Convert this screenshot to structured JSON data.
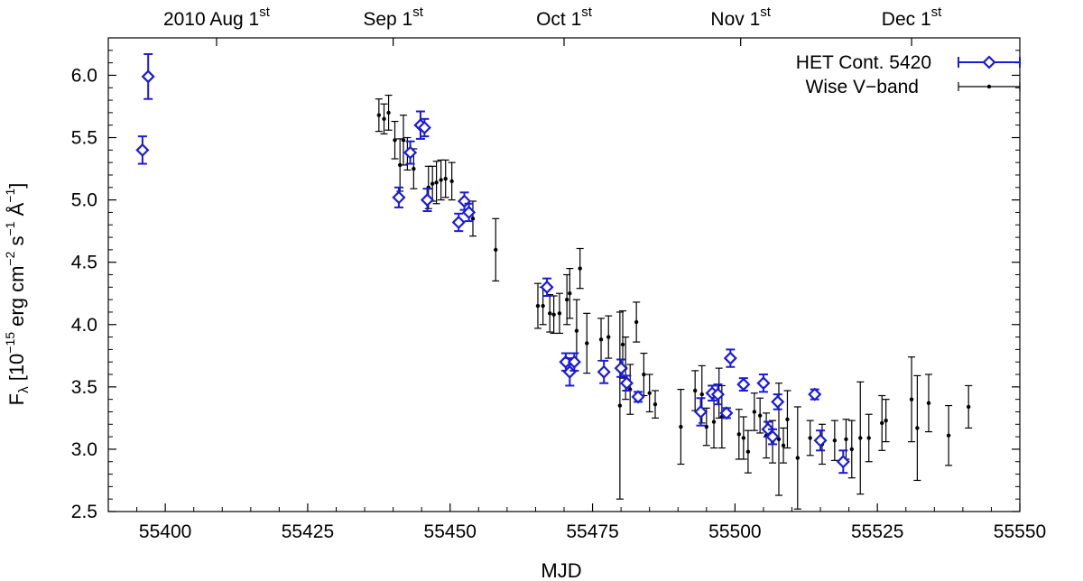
{
  "chart_data": {
    "type": "scatter",
    "title": "",
    "xlabel": "MJD",
    "ylabel": "F_λ [10^-15 erg cm^-2 s^-1 Å^-1]",
    "ylabel_parts": {
      "F": "F",
      "lambda": "λ",
      "open": " [10",
      "exp1": "−15",
      "erg": " erg cm",
      "exp2": "−2",
      "s": " s",
      "exp3": "−1",
      "ang": " Å",
      "exp4": "−1",
      "close": "]"
    },
    "xlim": [
      55390,
      55550
    ],
    "ylim": [
      2.5,
      6.3
    ],
    "xticks": [
      55400,
      55425,
      55450,
      55475,
      55500,
      55525,
      55550
    ],
    "yticks": [
      2.5,
      3.0,
      3.5,
      4.0,
      4.5,
      5.0,
      5.5,
      6.0
    ],
    "xtick_labels": [
      "55400",
      "55425",
      "55450",
      "55475",
      "55500",
      "55525",
      "55550"
    ],
    "ytick_labels": [
      "2.5",
      "3.0",
      "3.5",
      "4.0",
      "4.5",
      "5.0",
      "5.5",
      "6.0"
    ],
    "top_axis": [
      {
        "x": 55409,
        "text": "2010 Aug 1",
        "sup": "st"
      },
      {
        "x": 55440,
        "text": "Sep 1",
        "sup": "st"
      },
      {
        "x": 55470,
        "text": "Oct 1",
        "sup": "st"
      },
      {
        "x": 55501,
        "text": "Nov 1",
        "sup": "st"
      },
      {
        "x": 55531,
        "text": "Dec 1",
        "sup": "st"
      }
    ],
    "top_ticks": [
      55409,
      55440,
      55470,
      55501,
      55531
    ],
    "grid": false,
    "legend_position": "top-right",
    "series": [
      {
        "name": "HET Cont. 5420",
        "color": "#1a1adb",
        "marker": "diamond",
        "points": [
          [
            55396,
            5.4,
            0.11
          ],
          [
            55397,
            5.99,
            0.18
          ],
          [
            55441,
            5.02,
            0.08
          ],
          [
            55443,
            5.38,
            0.09
          ],
          [
            55444.8,
            5.6,
            0.11
          ],
          [
            55445.5,
            5.58,
            0.07
          ],
          [
            55446,
            5.0,
            0.09
          ],
          [
            55451.5,
            4.82,
            0.07
          ],
          [
            55452.5,
            4.99,
            0.07
          ],
          [
            55453.3,
            4.9,
            0.07
          ],
          [
            55467,
            4.3,
            0.07
          ],
          [
            55470.3,
            3.7,
            0.07
          ],
          [
            55471,
            3.62,
            0.11
          ],
          [
            55471.8,
            3.7,
            0.07
          ],
          [
            55477,
            3.62,
            0.09
          ],
          [
            55480,
            3.65,
            0.07
          ],
          [
            55481,
            3.53,
            0.06
          ],
          [
            55483,
            3.42,
            0.04
          ],
          [
            55494,
            3.3,
            0.11
          ],
          [
            55496,
            3.45,
            0.06
          ],
          [
            55497,
            3.44,
            0.08
          ],
          [
            55498.5,
            3.29,
            0.04
          ],
          [
            55499.2,
            3.73,
            0.07
          ],
          [
            55501.5,
            3.52,
            0.05
          ],
          [
            55505,
            3.53,
            0.07
          ],
          [
            55505.8,
            3.16,
            0.06
          ],
          [
            55506.6,
            3.1,
            0.06
          ],
          [
            55507.5,
            3.38,
            0.06
          ],
          [
            55514,
            3.44,
            0.04
          ],
          [
            55515,
            3.07,
            0.08
          ],
          [
            55519,
            2.9,
            0.09
          ]
        ]
      },
      {
        "name": "Wise V−band",
        "color": "#000000",
        "marker": "dot",
        "points": [
          [
            55437.5,
            5.68,
            0.13
          ],
          [
            55438.4,
            5.65,
            0.12
          ],
          [
            55439.2,
            5.7,
            0.14
          ],
          [
            55440.3,
            5.48,
            0.15
          ],
          [
            55441.2,
            5.28,
            0.21
          ],
          [
            55441.8,
            5.48,
            0.2
          ],
          [
            55442.5,
            5.37,
            0.13
          ],
          [
            55443.6,
            5.25,
            0.16
          ],
          [
            55446.2,
            5.1,
            0.17
          ],
          [
            55446.9,
            5.13,
            0.14
          ],
          [
            55447.6,
            5.14,
            0.17
          ],
          [
            55448.4,
            5.16,
            0.16
          ],
          [
            55449.2,
            5.17,
            0.15
          ],
          [
            55450.3,
            5.15,
            0.15
          ],
          [
            55454,
            4.85,
            0.14
          ],
          [
            55458,
            4.6,
            0.25
          ],
          [
            55465.4,
            4.15,
            0.18
          ],
          [
            55466.3,
            4.15,
            0.15
          ],
          [
            55467.5,
            4.09,
            0.15
          ],
          [
            55468.2,
            4.08,
            0.15
          ],
          [
            55469.2,
            4.09,
            0.16
          ],
          [
            55470.5,
            4.2,
            0.2
          ],
          [
            55471,
            4.25,
            0.2
          ],
          [
            55472.2,
            3.95,
            0.25
          ],
          [
            55472.8,
            4.45,
            0.16
          ],
          [
            55474,
            3.85,
            0.24
          ],
          [
            55476.5,
            3.88,
            0.17
          ],
          [
            55477.8,
            3.9,
            0.17
          ],
          [
            55479.8,
            3.35,
            0.75
          ],
          [
            55480.3,
            3.84,
            0.27
          ],
          [
            55480.8,
            3.65,
            0.25
          ],
          [
            55481.6,
            3.48,
            0.2
          ],
          [
            55482.7,
            4.02,
            0.16
          ],
          [
            55484,
            3.6,
            0.17
          ],
          [
            55485,
            3.45,
            0.15
          ],
          [
            55486,
            3.36,
            0.11
          ],
          [
            55490.5,
            3.18,
            0.3
          ],
          [
            55493,
            3.47,
            0.16
          ],
          [
            55494.2,
            3.44,
            0.23
          ],
          [
            55495,
            3.18,
            0.15
          ],
          [
            55496.3,
            3.22,
            0.21
          ],
          [
            55497.2,
            3.45,
            0.2
          ],
          [
            55497.7,
            3.26,
            0.25
          ],
          [
            55500.7,
            3.12,
            0.2
          ],
          [
            55501.5,
            3.09,
            0.17
          ],
          [
            55502.3,
            2.98,
            0.17
          ],
          [
            55503.4,
            3.3,
            0.15
          ],
          [
            55504.4,
            3.27,
            0.14
          ],
          [
            55505.5,
            3.11,
            0.18
          ],
          [
            55506.6,
            3.06,
            0.17
          ],
          [
            55507.7,
            3.08,
            0.45
          ],
          [
            55508.5,
            3.03,
            0.14
          ],
          [
            55509.2,
            3.24,
            0.23
          ],
          [
            55511,
            2.93,
            0.41
          ],
          [
            55513.2,
            3.09,
            0.14
          ],
          [
            55515.3,
            3.04,
            0.16
          ],
          [
            55517.5,
            3.07,
            0.16
          ],
          [
            55519.5,
            3.08,
            0.16
          ],
          [
            55520.5,
            3.0,
            0.23
          ],
          [
            55522,
            3.09,
            0.45
          ],
          [
            55523.5,
            3.09,
            0.19
          ],
          [
            55525.8,
            3.21,
            0.22
          ],
          [
            55526.5,
            3.23,
            0.17
          ],
          [
            55531,
            3.4,
            0.34
          ],
          [
            55532,
            3.17,
            0.42
          ],
          [
            55534,
            3.37,
            0.23
          ],
          [
            55537.5,
            3.11,
            0.24
          ],
          [
            55541,
            3.34,
            0.17
          ]
        ]
      }
    ]
  }
}
